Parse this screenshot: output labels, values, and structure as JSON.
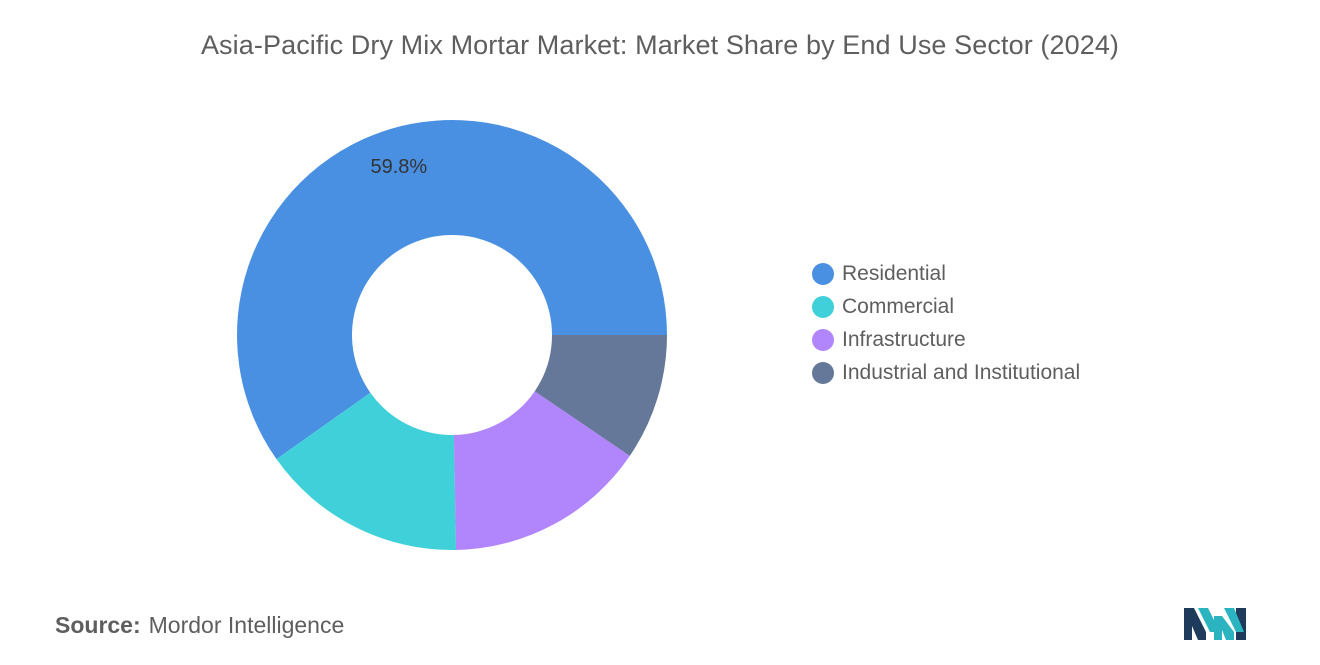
{
  "title": "Asia-Pacific Dry Mix Mortar Market: Market Share by End Use Sector (2024)",
  "source": {
    "label": "Source:",
    "text": "Mordor Intelligence"
  },
  "logo": {
    "icon": "mordor-intelligence-logo-icon",
    "colors": [
      "#1f3b5c",
      "#2bb3c0"
    ]
  },
  "chart_data": {
    "type": "pie",
    "subtype": "donut",
    "title": "Asia-Pacific Dry Mix Mortar Market: Market Share by End Use Sector (2024)",
    "categories": [
      "Residential",
      "Commercial",
      "Infrastructure",
      "Industrial and Institutional"
    ],
    "values": [
      59.8,
      15.5,
      15.2,
      9.5
    ],
    "unit": "%",
    "colors": [
      "#4a90e2",
      "#40d0da",
      "#b185fb",
      "#657899"
    ],
    "data_labels": [
      {
        "category": "Residential",
        "text": "59.8%"
      }
    ],
    "legend_position": "right"
  }
}
